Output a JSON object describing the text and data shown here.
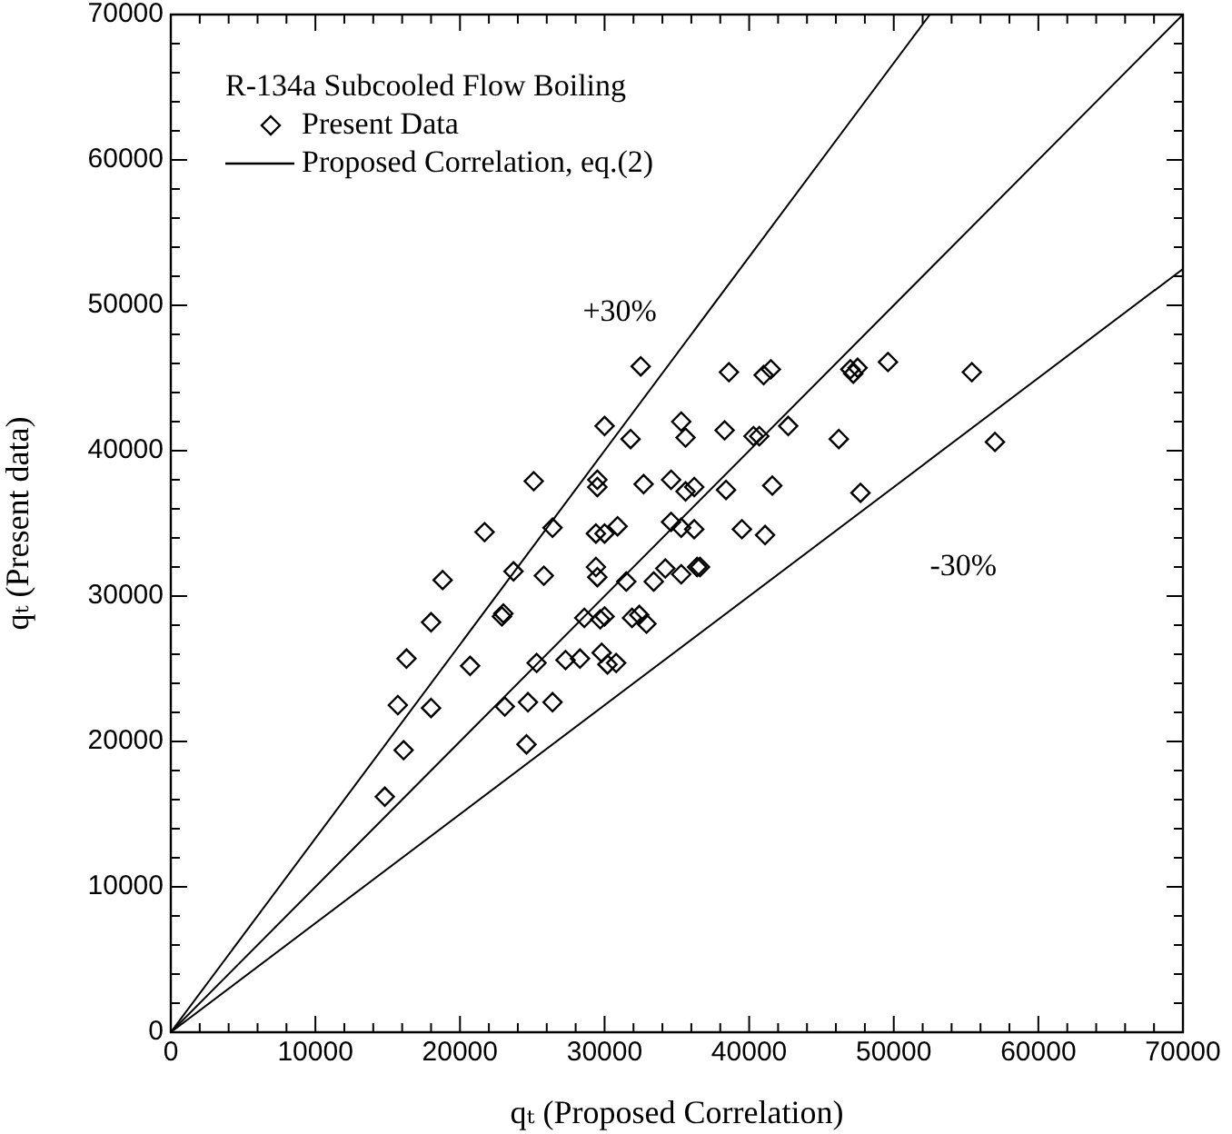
{
  "chart_data": {
    "type": "scatter",
    "legend_title": "R-134a Subcooled Flow Boiling",
    "xlabel": "qₜ (Proposed Correlation)",
    "ylabel": "qₜ (Present data)",
    "legend": "top left",
    "grid": false,
    "xlim": [
      0,
      70000
    ],
    "ylim": [
      0,
      70000
    ],
    "xticks": [
      0,
      {
        "value": 2000,
        "label": null
      },
      {
        "value": 4000,
        "label": null
      },
      {
        "value": 6000,
        "label": null
      },
      {
        "value": 8000,
        "label": null
      },
      10000,
      {
        "value": 12000,
        "label": null
      },
      {
        "value": 14000,
        "label": null
      },
      {
        "value": 16000,
        "label": null
      },
      {
        "value": 18000,
        "label": null
      },
      20000,
      {
        "value": 22000,
        "label": null
      },
      {
        "value": 24000,
        "label": null
      },
      {
        "value": 26000,
        "label": null
      },
      {
        "value": 28000,
        "label": null
      },
      30000,
      {
        "value": 32000,
        "label": null
      },
      {
        "value": 34000,
        "label": null
      },
      {
        "value": 36000,
        "label": null
      },
      {
        "value": 38000,
        "label": null
      },
      40000,
      {
        "value": 42000,
        "label": null
      },
      {
        "value": 44000,
        "label": null
      },
      {
        "value": 46000,
        "label": null
      },
      {
        "value": 48000,
        "label": null
      },
      50000,
      {
        "value": 52000,
        "label": null
      },
      {
        "value": 54000,
        "label": null
      },
      {
        "value": 56000,
        "label": null
      },
      {
        "value": 58000,
        "label": null
      },
      60000,
      {
        "value": 62000,
        "label": null
      },
      {
        "value": 64000,
        "label": null
      },
      {
        "value": 66000,
        "label": null
      },
      {
        "value": 68000,
        "label": null
      },
      70000
    ],
    "yticks": [
      0,
      {
        "value": 2000,
        "label": null
      },
      {
        "value": 4000,
        "label": null
      },
      {
        "value": 6000,
        "label": null
      },
      {
        "value": 8000,
        "label": null
      },
      10000,
      {
        "value": 12000,
        "label": null
      },
      {
        "value": 14000,
        "label": null
      },
      {
        "value": 16000,
        "label": null
      },
      {
        "value": 18000,
        "label": null
      },
      20000,
      {
        "value": 22000,
        "label": null
      },
      {
        "value": 24000,
        "label": null
      },
      {
        "value": 26000,
        "label": null
      },
      {
        "value": 28000,
        "label": null
      },
      30000,
      {
        "value": 32000,
        "label": null
      },
      {
        "value": 34000,
        "label": null
      },
      {
        "value": 36000,
        "label": null
      },
      {
        "value": 38000,
        "label": null
      },
      40000,
      {
        "value": 42000,
        "label": null
      },
      {
        "value": 44000,
        "label": null
      },
      {
        "value": 46000,
        "label": null
      },
      {
        "value": 48000,
        "label": null
      },
      50000,
      {
        "value": 52000,
        "label": null
      },
      {
        "value": 54000,
        "label": null
      },
      {
        "value": 56000,
        "label": null
      },
      {
        "value": 58000,
        "label": null
      },
      60000,
      {
        "value": 62000,
        "label": null
      },
      {
        "value": 64000,
        "label": null
      },
      {
        "value": 66000,
        "label": null
      },
      {
        "value": 68000,
        "label": null
      },
      70000
    ],
    "annotations": [
      "+30%",
      "-30%"
    ],
    "series": [
      {
        "name": "Present Data",
        "type": "scatter",
        "marker": "diamond",
        "color": "#000000",
        "x": [
          25100,
          21700,
          23700,
          18800,
          22900,
          23000,
          18000,
          16300,
          20700,
          15700,
          18000,
          23100,
          24700,
          16100,
          24600,
          14800,
          32500,
          38600,
          41000,
          41500,
          47000,
          47200,
          47500,
          49600,
          55400,
          57000,
          47700,
          30000,
          31800,
          35300,
          35600,
          38300,
          40300,
          40700,
          42700,
          46200,
          29500,
          29500,
          32700,
          34600,
          35600,
          36200,
          38400,
          41600,
          26400,
          29400,
          30000,
          30900,
          34600,
          35300,
          36200,
          39500,
          41100,
          25800,
          29400,
          29500,
          31500,
          33400,
          34200,
          35300,
          36400,
          36600,
          28600,
          29700,
          30000,
          31900,
          32400,
          32900,
          25300,
          27300,
          28300,
          29800,
          30200,
          30800,
          26400
        ],
        "values": [
          37900,
          34400,
          31700,
          31100,
          28600,
          28800,
          28200,
          25700,
          25200,
          22500,
          22300,
          22400,
          22700,
          19400,
          19800,
          16200,
          45800,
          45400,
          45200,
          45600,
          45600,
          45300,
          45700,
          46100,
          45400,
          40600,
          37100,
          41700,
          40800,
          42000,
          40900,
          41400,
          41000,
          41000,
          41700,
          40800,
          38000,
          37500,
          37700,
          38000,
          37200,
          37500,
          37300,
          37600,
          34700,
          34300,
          34300,
          34800,
          35100,
          34700,
          34600,
          34600,
          34200,
          31400,
          32000,
          31300,
          31000,
          31000,
          31900,
          31500,
          32000,
          32000,
          28500,
          28400,
          28600,
          28500,
          28700,
          28100,
          25400,
          25600,
          25700,
          26100,
          25300,
          25400,
          22700
        ]
      },
      {
        "name": "Proposed Correlation, eq.(2)",
        "type": "line",
        "marker": "none",
        "line_style": "solid",
        "color": "#000000",
        "x": [
          0,
          70000
        ],
        "values": [
          0,
          70000
        ]
      },
      {
        "type": "line",
        "marker": "none",
        "line_style": "solid",
        "color": "#000000",
        "x": [
          0,
          52500
        ],
        "values": [
          0,
          70000
        ]
      },
      {
        "type": "line",
        "marker": "none",
        "line_style": "solid",
        "color": "#000000",
        "x": [
          0,
          70000
        ],
        "values": [
          0,
          52500
        ]
      }
    ]
  }
}
